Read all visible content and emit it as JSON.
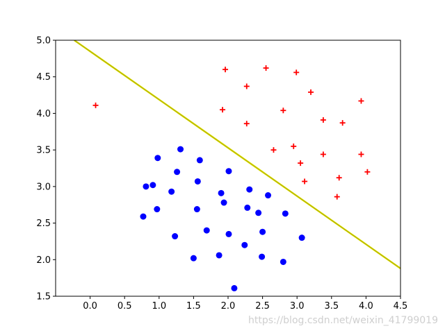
{
  "chart_data": {
    "type": "scatter",
    "title": "",
    "xlabel": "",
    "ylabel": "",
    "xlim": [
      -0.5,
      4.5
    ],
    "ylim": [
      1.5,
      5.0
    ],
    "xticks": [
      "0.0",
      "0.5",
      "1.0",
      "1.5",
      "2.0",
      "2.5",
      "3.0",
      "3.5",
      "4.0",
      "4.5"
    ],
    "yticks": [
      "1.5",
      "2.0",
      "2.5",
      "3.0",
      "3.5",
      "4.0",
      "4.5",
      "5.0"
    ],
    "grid": false,
    "series": [
      {
        "marker": "plus",
        "color": "#ff0000",
        "points": [
          [
            0.08,
            4.11
          ],
          [
            1.96,
            4.6
          ],
          [
            2.55,
            4.62
          ],
          [
            2.99,
            4.56
          ],
          [
            2.27,
            4.37
          ],
          [
            3.2,
            4.29
          ],
          [
            1.92,
            4.05
          ],
          [
            2.8,
            4.04
          ],
          [
            3.93,
            4.17
          ],
          [
            3.38,
            3.91
          ],
          [
            3.66,
            3.87
          ],
          [
            2.27,
            3.86
          ],
          [
            2.66,
            3.5
          ],
          [
            2.95,
            3.55
          ],
          [
            3.38,
            3.44
          ],
          [
            3.93,
            3.44
          ],
          [
            3.05,
            3.32
          ],
          [
            4.02,
            3.2
          ],
          [
            3.61,
            3.12
          ],
          [
            3.11,
            3.07
          ],
          [
            3.58,
            2.86
          ]
        ]
      },
      {
        "marker": "circle",
        "color": "#0000ff",
        "points": [
          [
            1.31,
            3.51
          ],
          [
            0.98,
            3.39
          ],
          [
            1.59,
            3.36
          ],
          [
            2.01,
            3.21
          ],
          [
            1.26,
            3.2
          ],
          [
            1.56,
            3.07
          ],
          [
            0.81,
            3.0
          ],
          [
            0.91,
            3.02
          ],
          [
            1.18,
            2.93
          ],
          [
            2.31,
            2.96
          ],
          [
            1.9,
            2.91
          ],
          [
            2.58,
            2.88
          ],
          [
            1.94,
            2.78
          ],
          [
            0.97,
            2.69
          ],
          [
            1.55,
            2.69
          ],
          [
            2.28,
            2.71
          ],
          [
            2.44,
            2.64
          ],
          [
            0.77,
            2.59
          ],
          [
            2.83,
            2.63
          ],
          [
            1.69,
            2.4
          ],
          [
            2.01,
            2.35
          ],
          [
            2.5,
            2.38
          ],
          [
            1.23,
            2.32
          ],
          [
            3.07,
            2.3
          ],
          [
            2.24,
            2.2
          ],
          [
            1.87,
            2.06
          ],
          [
            1.5,
            2.02
          ],
          [
            2.49,
            2.04
          ],
          [
            2.8,
            1.97
          ],
          [
            2.09,
            1.61
          ]
        ]
      }
    ],
    "line": {
      "color": "#e0e000",
      "points": [
        [
          -0.23,
          5.0
        ],
        [
          4.5,
          1.88
        ]
      ]
    }
  },
  "watermark": "https://blog.csdn.net/weixin_41799019"
}
